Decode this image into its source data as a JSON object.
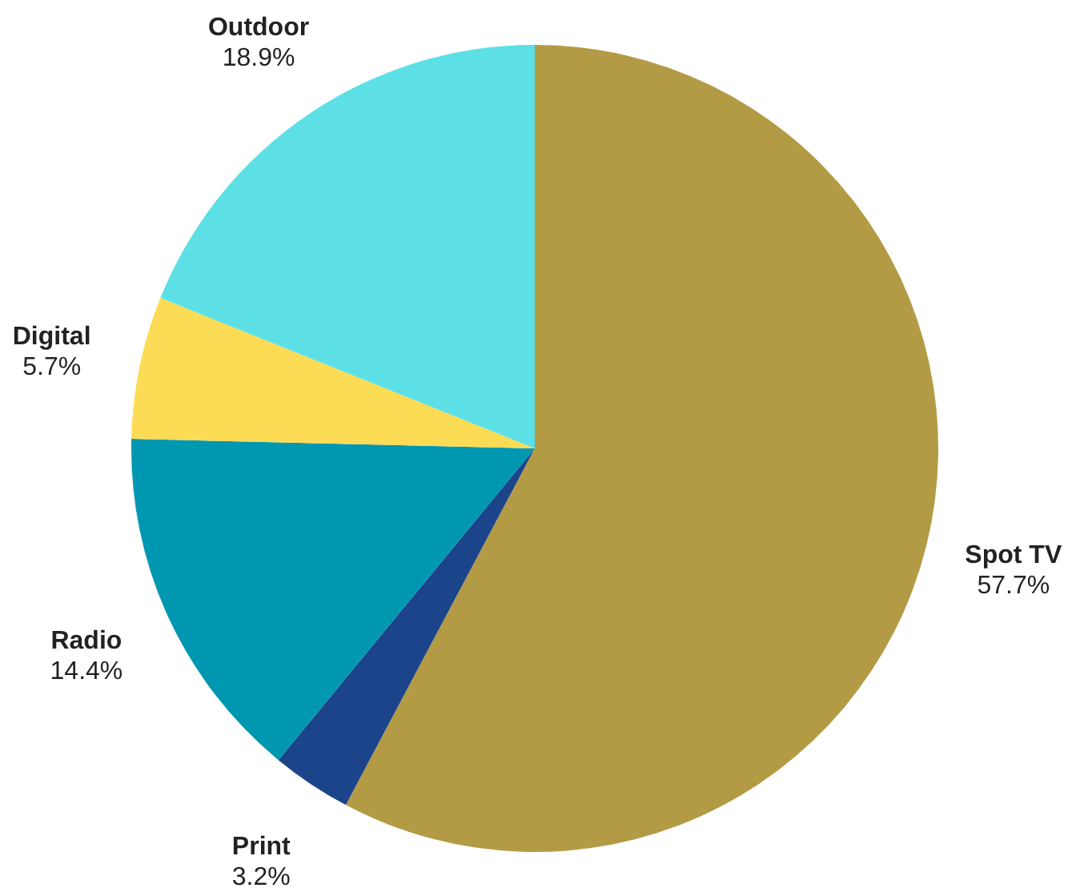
{
  "chart_data": {
    "type": "pie",
    "categories": [
      "Spot TV",
      "Print",
      "Radio",
      "Digital",
      "Outdoor"
    ],
    "values": [
      57.7,
      3.2,
      14.4,
      5.7,
      18.9
    ],
    "colors": [
      "#b39b45",
      "#1c448a",
      "#0097b0",
      "#fddc55",
      "#5ce0e6"
    ],
    "value_labels": [
      "57.7%",
      "3.2%",
      "14.4%",
      "5.7%",
      "18.9%"
    ]
  }
}
